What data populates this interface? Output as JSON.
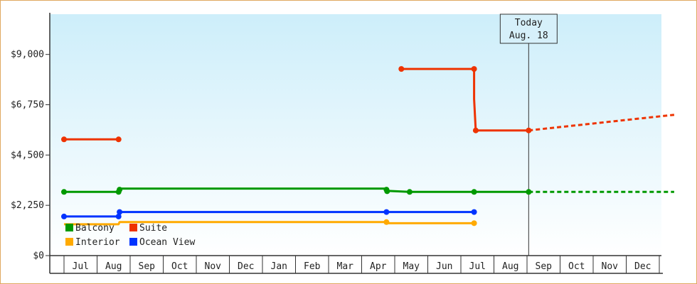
{
  "chart_data": {
    "type": "line",
    "line_shape": "step",
    "ylim": [
      0,
      10800
    ],
    "y_ticks": [
      {
        "value": 0,
        "label": "$0"
      },
      {
        "value": 2250,
        "label": "$2,250"
      },
      {
        "value": 4500,
        "label": "$4,500"
      },
      {
        "value": 6750,
        "label": "$6,750"
      },
      {
        "value": 9000,
        "label": "$9,000"
      }
    ],
    "x_month_labels": [
      "Jul",
      "Aug",
      "Sep",
      "Oct",
      "Nov",
      "Dec",
      "Jan",
      "Feb",
      "Mar",
      "Apr",
      "May",
      "Jun",
      "Jul",
      "Aug",
      "Sep",
      "Oct",
      "Nov",
      "Dec"
    ],
    "x_range_months": [
      0,
      18.5
    ],
    "today": {
      "line1": "Today",
      "line2": "Aug. 18",
      "x": 14.05
    },
    "background": {
      "top": "#cdeefa",
      "bottom": "#ffffff"
    },
    "series": [
      {
        "name": "Balcony",
        "color": "#009900",
        "segments": [
          {
            "points": [
              [
                0.0,
                2850
              ],
              [
                1.65,
                2850
              ],
              [
                1.65,
                2950
              ],
              [
                1.68,
                3000
              ],
              [
                9.75,
                3000
              ],
              [
                9.75,
                2900
              ],
              [
                10.45,
                2850
              ],
              [
                12.4,
                2850
              ],
              [
                14.05,
                2850
              ]
            ]
          }
        ],
        "markers": [
          [
            0.0,
            2850
          ],
          [
            1.65,
            2850
          ],
          [
            1.68,
            2950
          ],
          [
            9.75,
            2950
          ],
          [
            9.77,
            2880
          ],
          [
            10.45,
            2850
          ],
          [
            12.4,
            2850
          ],
          [
            14.05,
            2850
          ]
        ],
        "projection": [
          [
            14.05,
            2850
          ],
          [
            18.45,
            2850
          ]
        ]
      },
      {
        "name": "Suite",
        "color": "#ee3300",
        "segments": [
          {
            "points": [
              [
                0.0,
                5200
              ],
              [
                1.65,
                5200
              ]
            ]
          },
          {
            "points": [
              [
                10.2,
                8350
              ],
              [
                12.4,
                8350
              ],
              [
                12.4,
                7000
              ],
              [
                12.45,
                5600
              ],
              [
                14.05,
                5600
              ]
            ]
          }
        ],
        "markers": [
          [
            0.0,
            5200
          ],
          [
            1.65,
            5200
          ],
          [
            10.2,
            8350
          ],
          [
            12.4,
            8350
          ],
          [
            12.45,
            5600
          ],
          [
            14.05,
            5600
          ]
        ],
        "projection": [
          [
            14.05,
            5600
          ],
          [
            18.45,
            6300
          ]
        ]
      },
      {
        "name": "Interior",
        "color": "#ffaa00",
        "segments": [
          {
            "points": [
              [
                0.0,
                1400
              ],
              [
                1.65,
                1400
              ],
              [
                1.68,
                1500
              ],
              [
                9.75,
                1500
              ],
              [
                9.77,
                1450
              ],
              [
                12.4,
                1450
              ]
            ]
          }
        ],
        "markers": [
          [
            9.75,
            1500
          ],
          [
            12.4,
            1450
          ]
        ],
        "projection": []
      },
      {
        "name": "Ocean View",
        "color": "#0033ff",
        "segments": [
          {
            "points": [
              [
                0.0,
                1750
              ],
              [
                1.65,
                1750
              ],
              [
                1.68,
                1950
              ],
              [
                12.4,
                1950
              ]
            ]
          }
        ],
        "markers": [
          [
            0.0,
            1750
          ],
          [
            1.65,
            1750
          ],
          [
            1.68,
            1950
          ],
          [
            9.75,
            1950
          ],
          [
            12.4,
            1950
          ]
        ],
        "projection": []
      }
    ],
    "legend": {
      "placement": "bottom-left",
      "items": [
        {
          "name": "Balcony",
          "color": "#009900"
        },
        {
          "name": "Suite",
          "color": "#ee3300"
        },
        {
          "name": "Interior",
          "color": "#ffaa00"
        },
        {
          "name": "Ocean View",
          "color": "#0033ff"
        }
      ]
    }
  }
}
